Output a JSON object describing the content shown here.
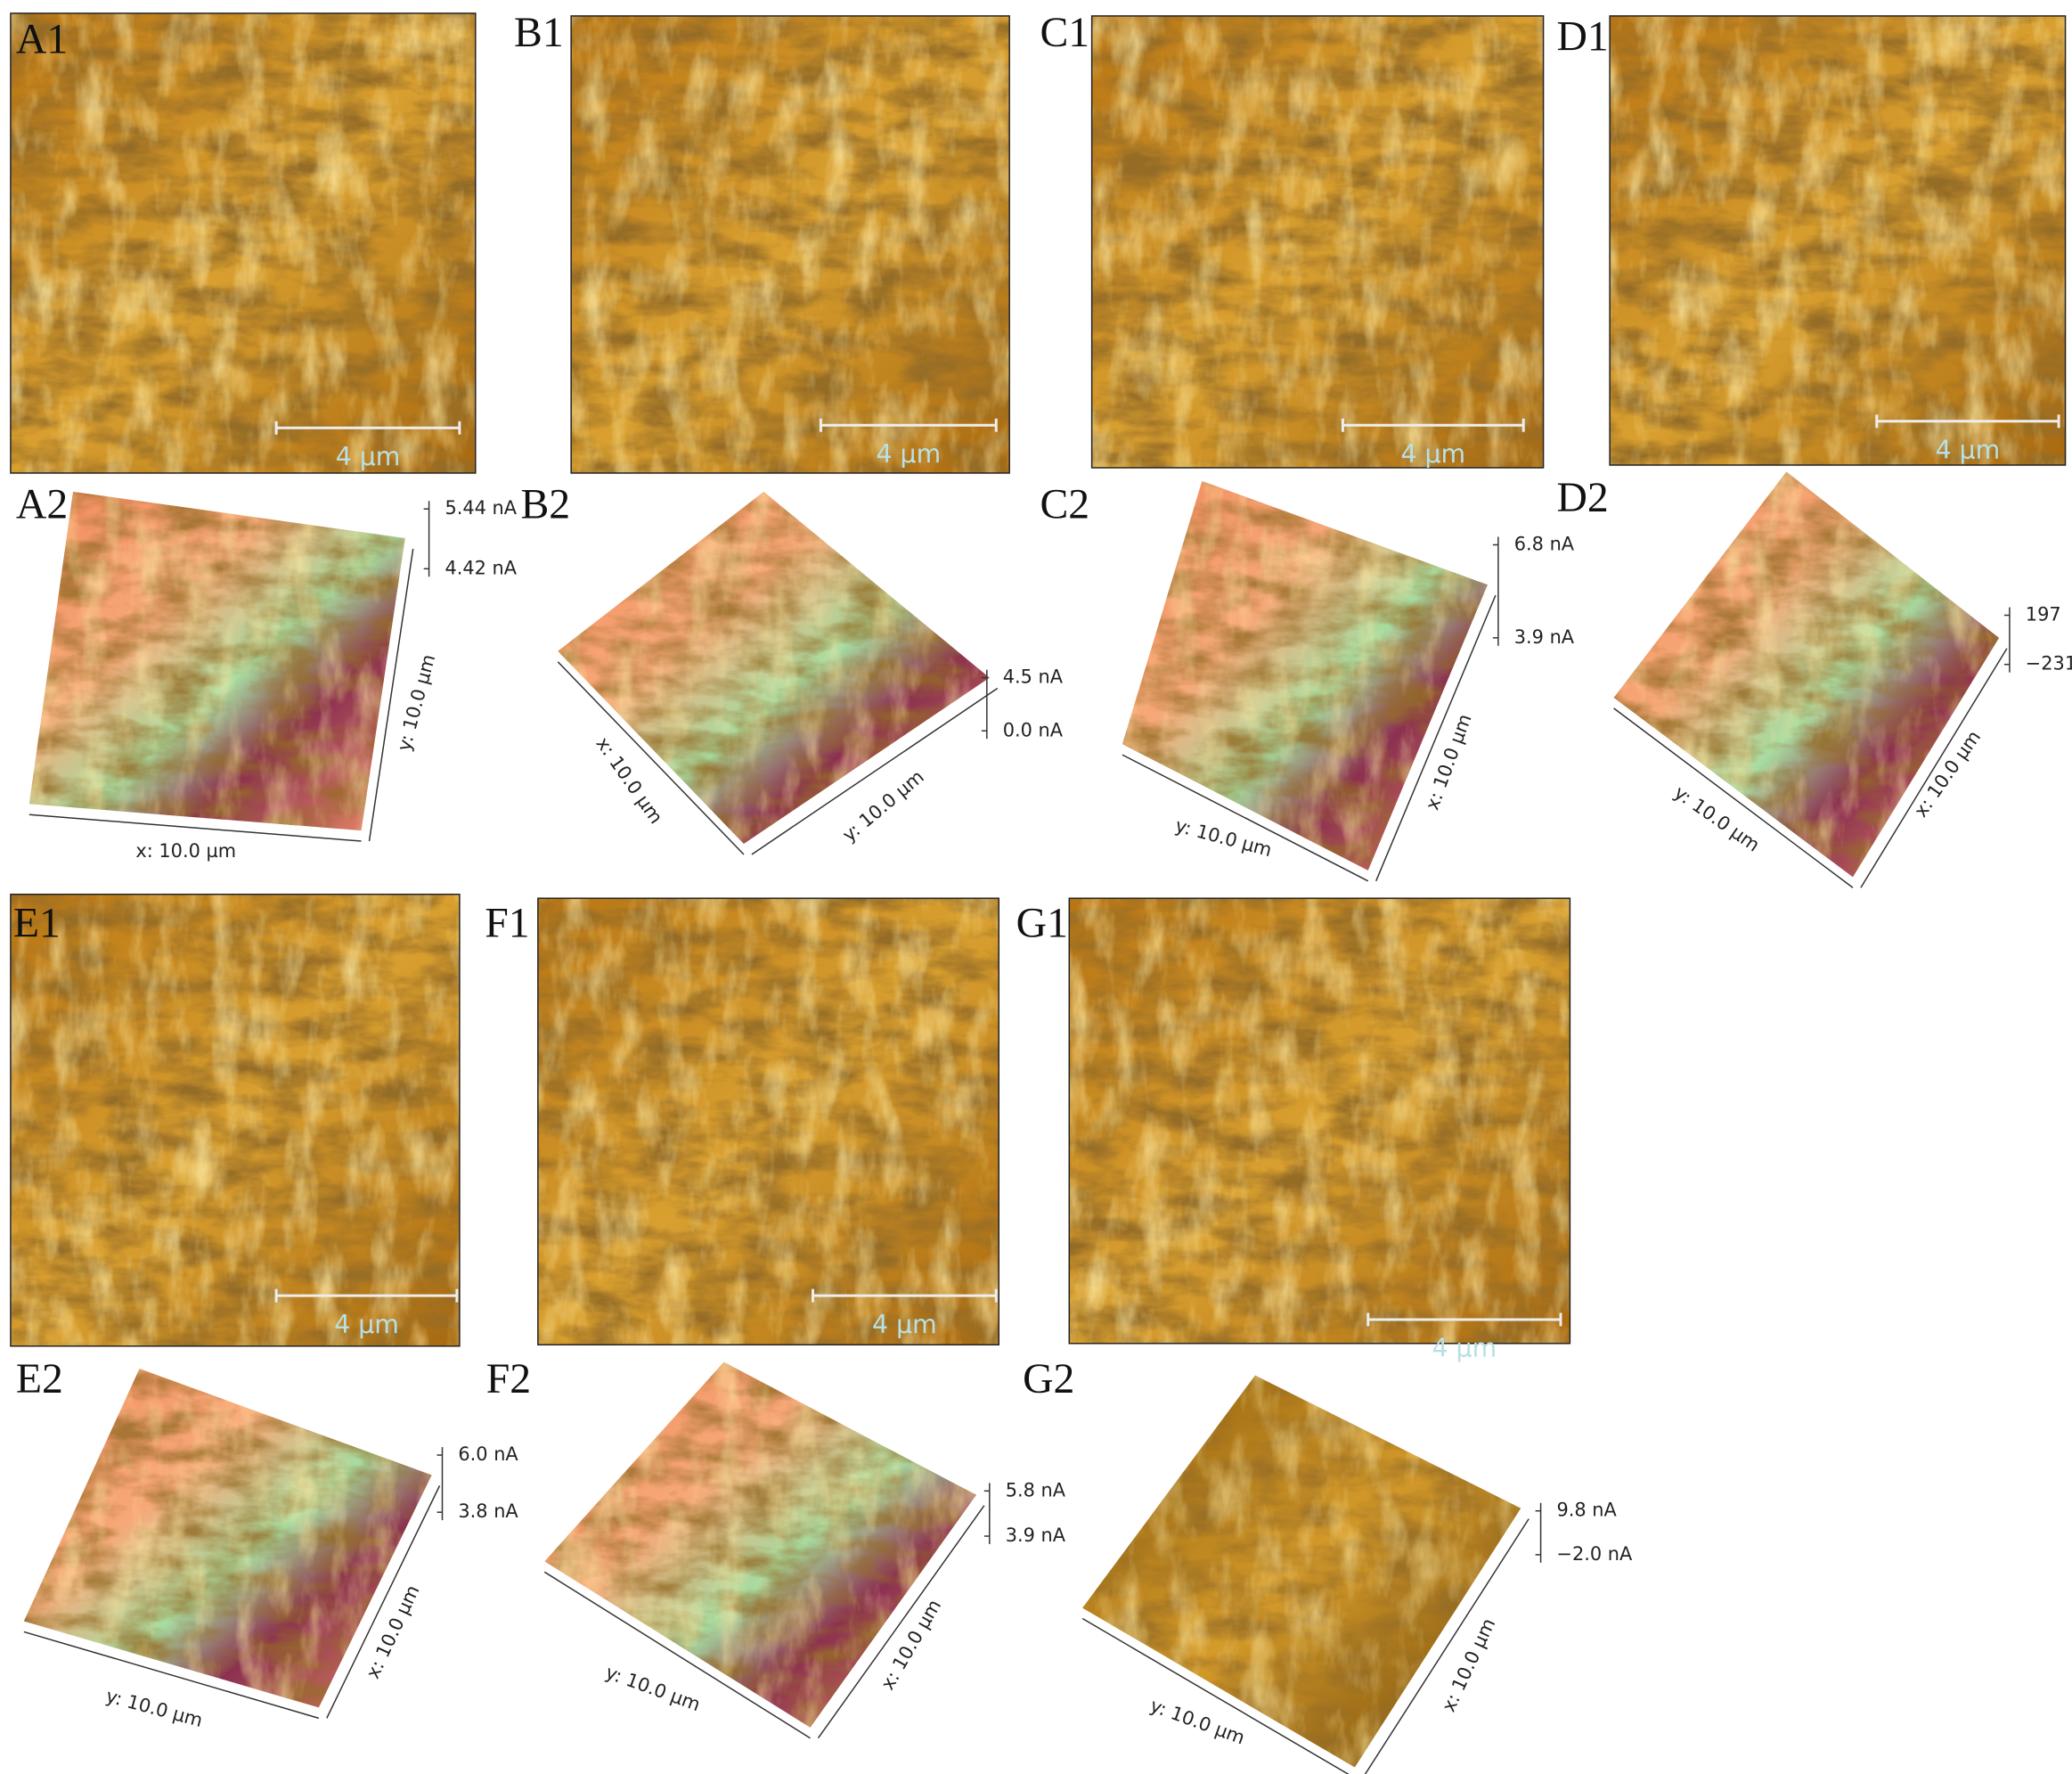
{
  "images": [
    {
      "label": "A1",
      "scale_bar": "4 µm"
    },
    {
      "label": "B1",
      "scale_bar": "4 µm"
    },
    {
      "label": "C1",
      "scale_bar": "4 µm"
    },
    {
      "label": "D1",
      "scale_bar": "4 µm"
    },
    {
      "label": "E1",
      "scale_bar": "4 µm"
    },
    {
      "label": "F1",
      "scale_bar": "4 µm"
    },
    {
      "label": "G1",
      "scale_bar": "4 µm"
    }
  ],
  "surfaces": [
    {
      "label": "A2",
      "ticks": [
        "5.44 nA",
        "4.42 nA"
      ],
      "axes": [
        "y: 10.0 µm",
        "x: 10.0 µm"
      ]
    },
    {
      "label": "B2",
      "ticks": [
        "4.5 nA",
        "0.0 nA"
      ],
      "axes": [
        "x: 10.0 µm",
        "y: 10.0 µm"
      ]
    },
    {
      "label": "C2",
      "ticks": [
        "6.8 nA",
        "3.9 nA"
      ],
      "axes": [
        "y: 10.0 µm",
        "x: 10.0 µm"
      ]
    },
    {
      "label": "D2",
      "ticks": [
        "197",
        "−231"
      ],
      "axes": [
        "y: 10.0 µm",
        "x: 10.0 µm"
      ]
    },
    {
      "label": "E2",
      "ticks": [
        "6.0 nA",
        "3.8 nA"
      ],
      "axes": [
        "y: 10.0 µm",
        "x: 10.0 µm"
      ]
    },
    {
      "label": "F2",
      "ticks": [
        "5.8 nA",
        "3.9 nA"
      ],
      "axes": [
        "y: 10.0 µm",
        "x: 10.0 µm"
      ]
    },
    {
      "label": "G2",
      "ticks": [
        "9.8 nA",
        "−2.0 nA"
      ],
      "axes": [
        "y: 10.0 µm",
        "x: 10.0 µm"
      ]
    }
  ]
}
